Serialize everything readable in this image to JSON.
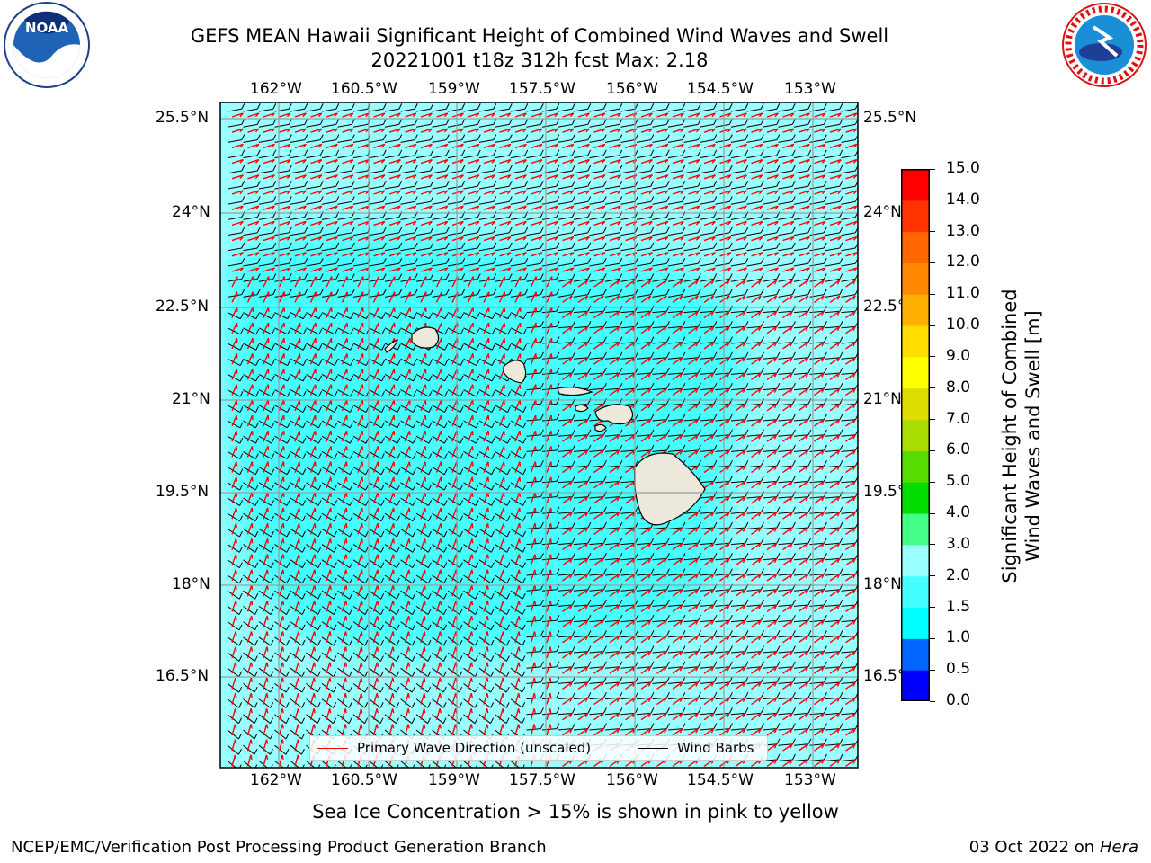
{
  "title_line1": "GEFS MEAN Hawaii Significant Height of Combined Wind Waves and Swell",
  "title_line2": "20221001 t18z 312h fcst   Max: 2.18",
  "lon_ticks": [
    "162°W",
    "160.5°W",
    "159°W",
    "157.5°W",
    "156°W",
    "154.5°W",
    "153°W"
  ],
  "lat_ticks": [
    "25.5°N",
    "24°N",
    "22.5°N",
    "21°N",
    "19.5°N",
    "18°N",
    "16.5°N"
  ],
  "colorbar": {
    "ticks": [
      "0.0",
      "0.5",
      "1.0",
      "1.5",
      "2.0",
      "3.0",
      "4.0",
      "5.0",
      "6.0",
      "7.0",
      "8.0",
      "9.0",
      "10.0",
      "11.0",
      "12.0",
      "13.0",
      "14.0",
      "15.0"
    ],
    "colors": [
      "#0000ff",
      "#0066ff",
      "#00ffff",
      "#44ffff",
      "#99ffff",
      "#44ff88",
      "#00dd00",
      "#55dd00",
      "#aadd00",
      "#dddd00",
      "#ffff00",
      "#ffdd00",
      "#ffb000",
      "#ff8800",
      "#ff6600",
      "#ff3300",
      "#ff0000"
    ],
    "label_line1": "Significant Height of Combined",
    "label_line2": "Wind Waves and Swell [m]"
  },
  "legend": {
    "wave_label": "Primary Wave Direction (unscaled)",
    "barb_label": "Wind Barbs",
    "wave_color": "#ff0000",
    "barb_color": "#000000"
  },
  "subcaption": "Sea Ice Concentration > 15% is shown in pink to yellow",
  "footer_left": "NCEP/EMC/Verification Post Processing Product Generation Branch",
  "footer_date": "03 Oct 2022 on ",
  "footer_host": "Hera",
  "logos": {
    "left_text": "NOAA",
    "right_text": "NATIONAL WEATHER SERVICE"
  }
}
